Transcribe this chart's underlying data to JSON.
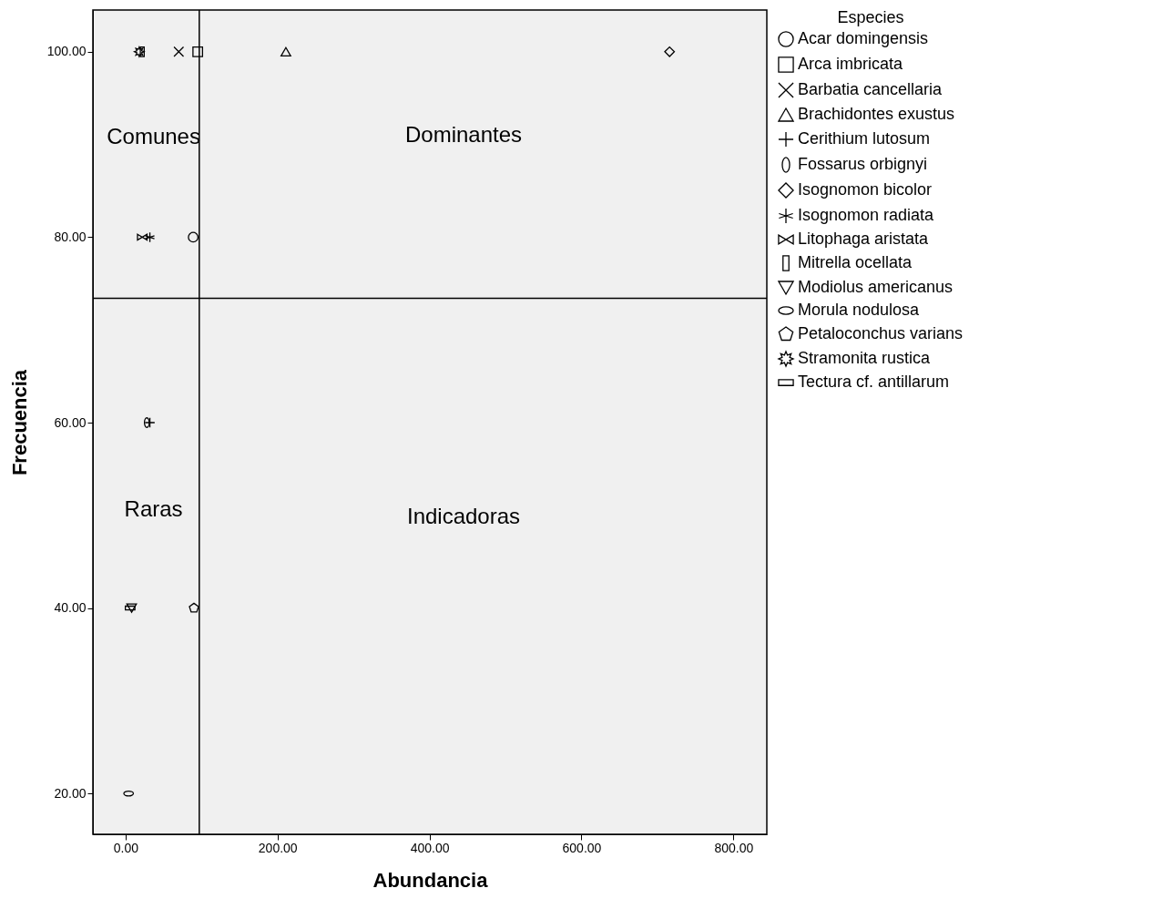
{
  "chart_data": {
    "type": "scatter",
    "xlabel": "Abundancia",
    "ylabel": "Frecuencia",
    "legend_title": "Especies",
    "legend": "right",
    "grid": false,
    "xlim": [
      -43,
      844
    ],
    "ylim": [
      15.6,
      104.5
    ],
    "xticks": [
      {
        "value": 0,
        "label": "0.00"
      },
      {
        "value": 200,
        "label": "200.00"
      },
      {
        "value": 400,
        "label": "400.00"
      },
      {
        "value": 600,
        "label": "600.00"
      },
      {
        "value": 800,
        "label": "800.00"
      }
    ],
    "yticks": [
      {
        "value": 20,
        "label": "20.00"
      },
      {
        "value": 40,
        "label": "40.00"
      },
      {
        "value": 60,
        "label": "60.00"
      },
      {
        "value": 80,
        "label": "80.00"
      },
      {
        "value": 100,
        "label": "100.00"
      }
    ],
    "series": [
      {
        "name": "Acar domingensis",
        "color": "#000000",
        "marker": "circle",
        "x": [
          89
        ],
        "values": [
          80
        ]
      },
      {
        "name": "Arca imbricata",
        "color": "#000000",
        "marker": "square",
        "x": [
          95
        ],
        "values": [
          100
        ]
      },
      {
        "name": "Barbatia cancellaria",
        "color": "#000000",
        "x": [
          70
        ],
        "values": [
          100
        ]
      },
      {
        "name": "Brachidontes exustus",
        "color": "#000000",
        "marker": "triangle",
        "x": [
          211
        ],
        "values": [
          100
        ]
      },
      {
        "name": "Cerithium lutosum",
        "color": "#000000",
        "marker": "cross",
        "x": [
          32
        ],
        "values": [
          60
        ]
      },
      {
        "name": "Fossarus orbignyi",
        "color": "#000000",
        "x": [
          28
        ],
        "values": [
          60
        ]
      },
      {
        "name": "Isognomon bicolor",
        "color": "#000000",
        "marker": "diamond",
        "x": [
          716
        ],
        "values": [
          100
        ]
      },
      {
        "name": "Isognomon radiata",
        "color": "#000000",
        "x": [
          32
        ],
        "values": [
          80
        ]
      },
      {
        "name": "Litophaga aristata",
        "color": "#000000",
        "x": [
          22
        ],
        "values": [
          80
        ]
      },
      {
        "name": "Mitrella  ocellata",
        "color": "#000000",
        "x": [
          22
        ],
        "values": [
          100
        ]
      },
      {
        "name": "Modiolus americanus",
        "color": "#000000",
        "x": [
          8
        ],
        "values": [
          40
        ]
      },
      {
        "name": "Morula nodulosa",
        "color": "#000000",
        "x": [
          4
        ],
        "values": [
          20
        ]
      },
      {
        "name": "Petaloconchus varians",
        "color": "#000000",
        "x": [
          90
        ],
        "values": [
          40
        ]
      },
      {
        "name": "Stramonita rustica",
        "color": "#000000",
        "x": [
          18
        ],
        "values": [
          100
        ]
      },
      {
        "name": "Tectura cf. antillarum",
        "color": "#000000",
        "x": [
          6
        ],
        "values": [
          40
        ]
      }
    ],
    "ref_lines": [
      {
        "axis": "x",
        "value": 97
      },
      {
        "axis": "y",
        "value": 73.4
      }
    ],
    "annotations": [
      "Comunes",
      "Dominantes",
      "Raras",
      "Indicadoras"
    ]
  }
}
